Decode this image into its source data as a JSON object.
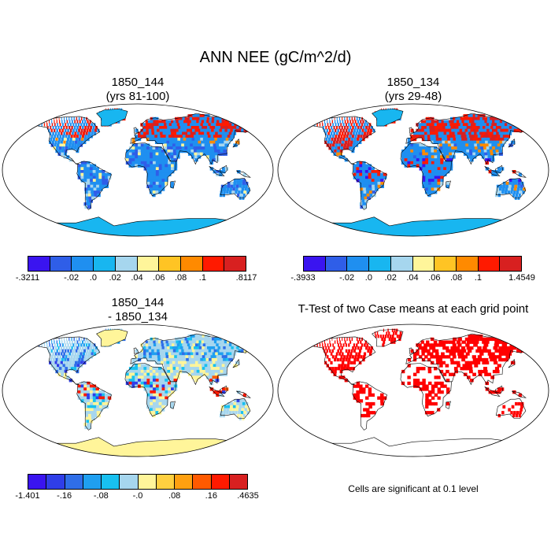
{
  "title": "ANN NEE (gC/m^2/d)",
  "panels": [
    {
      "id": "p1",
      "line1": "1850_144",
      "line2": "(yrs 81-100)"
    },
    {
      "id": "p2",
      "line1": "1850_134",
      "line2": "(yrs 29-48)"
    },
    {
      "id": "p3",
      "line1": "1850_144",
      "line2": "- 1850_134"
    },
    {
      "id": "p4",
      "line1": "T-Test of two Case means at each grid point",
      "line2": ""
    }
  ],
  "colorbars": [
    {
      "id": "cb1",
      "colors": [
        "#3a14f0",
        "#2f5ee8",
        "#1f8ff0",
        "#18b6f0",
        "#a6d6ee",
        "#fff59a",
        "#ffc424",
        "#ff8a00",
        "#ff1a00",
        "#d82020"
      ],
      "labels": [
        "-.3211",
        "-.02",
        ".0",
        ".02",
        ".04",
        ".06",
        ".08",
        ".1",
        ".8117"
      ]
    },
    {
      "id": "cb2",
      "colors": [
        "#3a14f0",
        "#2f5ee8",
        "#1f8ff0",
        "#18b6f0",
        "#a6d6ee",
        "#fff59a",
        "#ffc424",
        "#ff8a00",
        "#ff1a00",
        "#d82020"
      ],
      "labels": [
        "-.3933",
        "-.02",
        ".0",
        ".02",
        ".04",
        ".06",
        ".08",
        ".1",
        "1.4549"
      ]
    },
    {
      "id": "cb3",
      "colors": [
        "#3a14f0",
        "#2f3ee8",
        "#2f6ee8",
        "#1f9ff0",
        "#18c0f0",
        "#a6d6ee",
        "#fff59a",
        "#ffd040",
        "#ffa010",
        "#ff5a00",
        "#ff1a00",
        "#d82020"
      ],
      "labels": [
        "-1.401",
        "-.16",
        "-.08",
        "-.0",
        ".08",
        ".16",
        ".4635"
      ]
    }
  ],
  "ttest_note": "Cells are significant at 0.1 level",
  "map_palette": {
    "ocean": "#ffffff",
    "ice_p1": "#18b6f0",
    "ice_p2": "#18b6f0",
    "ice_p3": "#fff59a",
    "sig": "#ff0000"
  }
}
